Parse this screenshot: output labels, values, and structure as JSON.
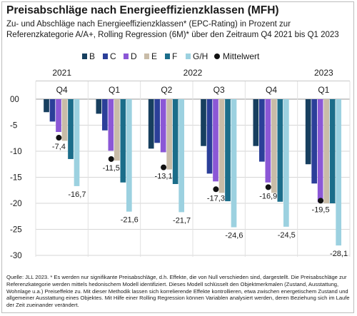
{
  "title": "Preisabschläge nach Energieeffizienzklassen (MFH)",
  "subtitle": "Zu- und Abschläge nach Energieeffizienzklassen* (EPC-Rating) in Prozent zur Referenzkategorie A/A+, Rolling Regression (6M)* über den Zeitraum Q4 2021 bis Q1 2023",
  "footnote": "Quelle: JLL 2023. * Es werden nur signifikante Preisabschläge, d.h. Effekte, die von Null verschieden sind, dargestellt. Die Preisabschläge zur Referenzkategorie werden mittels hedonischem Modell identifiziert. Dieses Modell schlüsselt den Objektmerkmalen (Zustand, Ausstattung, Wohnlage u.a.) Preiseffekte zu. Mit dieser Methodik lassen sich korrelierende Effekte kontrollieren, etwa zwischen energetischem Zustand und allgemeiner Ausstattung eines Objektes. Mit Hilfe einer Rolling Regression können Variablen analysiert werden, deren Beziehung sich im Laufe der Zeit zueinander verändert.",
  "chart_data": {
    "type": "bar",
    "years": [
      {
        "label": "2021",
        "span": 1
      },
      {
        "label": "2022",
        "span": 4
      },
      {
        "label": "2023",
        "span": 1
      }
    ],
    "categories": [
      "Q4",
      "Q1",
      "Q2",
      "Q3",
      "Q4",
      "Q1"
    ],
    "series": [
      {
        "name": "B",
        "color": "#173f5f",
        "values": [
          -2.5,
          -2.8,
          -9.5,
          -9.0,
          -9.0,
          -12.5
        ]
      },
      {
        "name": "C",
        "color": "#2b3f99",
        "values": [
          -4.3,
          -6.0,
          -8.4,
          -14.3,
          -12.0,
          -16.2
        ]
      },
      {
        "name": "D",
        "color": "#8b57d6",
        "values": [
          -6.3,
          -9.9,
          -10.2,
          -15.8,
          -16.0,
          -19.8
        ]
      },
      {
        "name": "E",
        "color": "#c9bca8",
        "values": [
          -8.0,
          -11.8,
          -13.5,
          -18.0,
          -18.0,
          -20.0
        ]
      },
      {
        "name": "F",
        "color": "#1b6d8a",
        "values": [
          -11.5,
          -16.0,
          -16.3,
          -19.6,
          -19.7,
          -20.0
        ]
      },
      {
        "name": "G/H",
        "color": "#9cd1e0",
        "values": [
          -16.7,
          -21.6,
          -21.7,
          -24.6,
          -24.5,
          -28.1
        ]
      }
    ],
    "mean": {
      "name": "Mittelwert",
      "color": "#111111",
      "values": [
        -7.4,
        -11.5,
        -13.1,
        -17.3,
        -16.9,
        -19.5
      ]
    },
    "labels": [
      "-7,4",
      "-11,5",
      "-13,1",
      "-17,3",
      "-16,9",
      "-19,5"
    ],
    "min_labels": [
      "-16,7",
      "-21,6",
      "-21,7",
      "-24,6",
      "-24,5",
      "-28,1"
    ],
    "yticks": [
      0,
      -5,
      -10,
      -15,
      -20,
      -25,
      -30
    ],
    "ytick_labels": [
      "00",
      "-5",
      "-10",
      "-15",
      "-20",
      "-25",
      "-30"
    ],
    "ylim": [
      -30,
      0
    ],
    "grid": true,
    "legend_position": "top"
  }
}
